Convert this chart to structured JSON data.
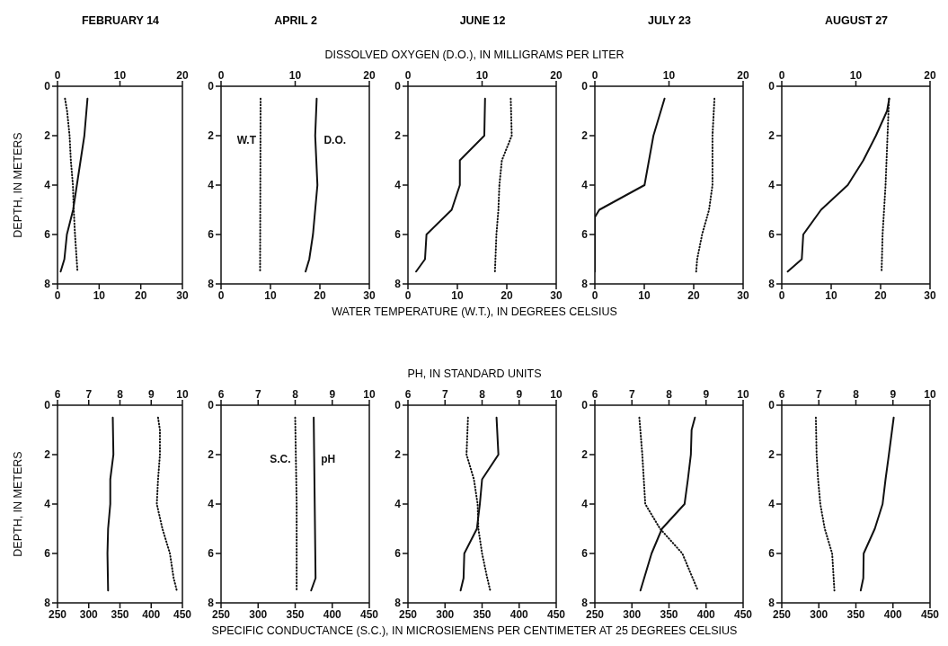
{
  "chart_data": [
    {
      "type": "line",
      "title": "FEBRUARY 14",
      "ylabel": "DEPTH, IN METERS",
      "ylim": [
        8,
        0
      ],
      "yticks": [
        0,
        2,
        4,
        6,
        8
      ],
      "xlim": [
        0,
        30
      ],
      "xticks": [
        0,
        10,
        20,
        30
      ],
      "x2lim": [
        0,
        20
      ],
      "x2ticks": [
        0,
        10,
        20
      ],
      "marker": "none",
      "series": [
        {
          "axis": "x2",
          "line_style": "solid",
          "color": "#111111",
          "x": [
            4.8,
            4.3,
            3.7,
            2.5,
            1.5,
            1.1,
            0.5
          ],
          "values": [
            0.5,
            2,
            3,
            5,
            6,
            7,
            7.5
          ]
        },
        {
          "line_style": "dotted",
          "color": "#111111",
          "x": [
            1.8,
            2.3,
            2.9,
            3.2,
            3.7,
            3.9,
            4.2,
            4.6,
            4.8
          ],
          "values": [
            0.5,
            1,
            2,
            3,
            4,
            5,
            6,
            7,
            7.5
          ]
        }
      ]
    },
    {
      "type": "line",
      "title": "APRIL 2",
      "ylim": [
        8,
        0
      ],
      "yticks": [
        0,
        2,
        4,
        6,
        8
      ],
      "xlim": [
        0,
        30
      ],
      "xticks": [
        0,
        10,
        20,
        30
      ],
      "x2lim": [
        0,
        20
      ],
      "x2ticks": [
        0,
        10,
        20
      ],
      "marker": "none",
      "series": [
        {
          "name": "D.O.",
          "axis": "x2",
          "line_style": "solid",
          "color": "#111111",
          "x": [
            12.9,
            12.7,
            13.0,
            12.4,
            11.9,
            11.4
          ],
          "values": [
            0.5,
            2,
            4,
            6,
            7,
            7.5
          ]
        },
        {
          "name": "W.T",
          "line_style": "dotted",
          "color": "#111111",
          "x": [
            8.0,
            7.9
          ],
          "values": [
            0.5,
            7.5
          ]
        }
      ]
    },
    {
      "type": "line",
      "title": "JUNE 12",
      "x2label": "DISSOLVED OXYGEN (D.O.), IN MILLIGRAMS PER LITER",
      "xlabel": "WATER TEMPERATURE (W.T.), IN DEGREES CELSIUS",
      "ylim": [
        8,
        0
      ],
      "yticks": [
        0,
        2,
        4,
        6,
        8
      ],
      "xlim": [
        0,
        30
      ],
      "xticks": [
        0,
        10,
        20,
        30
      ],
      "x2lim": [
        0,
        20
      ],
      "x2ticks": [
        0,
        10,
        20
      ],
      "marker": "none",
      "series": [
        {
          "axis": "x2",
          "line_style": "solid",
          "color": "#111111",
          "x": [
            10.4,
            10.3,
            7.0,
            7.0,
            5.9,
            2.5,
            2.3,
            1.1
          ],
          "values": [
            0.5,
            2,
            3,
            4,
            5,
            6,
            7,
            7.5
          ]
        },
        {
          "line_style": "dotted",
          "color": "#111111",
          "x": [
            20.8,
            21.0,
            19.0,
            18.5,
            18.3,
            17.9,
            17.7,
            17.6
          ],
          "values": [
            0.5,
            2,
            3,
            4,
            5,
            6,
            7,
            7.5
          ]
        }
      ]
    },
    {
      "type": "line",
      "title": "JULY 23",
      "ylim": [
        8,
        0
      ],
      "yticks": [
        0,
        2,
        4,
        6,
        8
      ],
      "xlim": [
        0,
        30
      ],
      "xticks": [
        0,
        10,
        20,
        30
      ],
      "x2lim": [
        0,
        20
      ],
      "x2ticks": [
        0,
        10,
        20
      ],
      "marker": "none",
      "series": [
        {
          "axis": "x2",
          "line_style": "solid",
          "color": "#111111",
          "x": [
            9.4,
            7.9,
            6.7,
            0.6,
            0,
            0
          ],
          "values": [
            0.5,
            2,
            4,
            5,
            5.3,
            7.5
          ]
        },
        {
          "line_style": "dotted",
          "color": "#111111",
          "x": [
            24.2,
            23.8,
            23.8,
            23.1,
            21.7,
            20.7,
            20.5
          ],
          "values": [
            0.5,
            2,
            4,
            5,
            6,
            7,
            7.5
          ]
        }
      ]
    },
    {
      "type": "line",
      "title": "AUGUST 27",
      "ylim": [
        8,
        0
      ],
      "yticks": [
        0,
        2,
        4,
        6,
        8
      ],
      "xlim": [
        0,
        30
      ],
      "xticks": [
        0,
        10,
        20,
        30
      ],
      "x2lim": [
        0,
        20
      ],
      "x2ticks": [
        0,
        10,
        20
      ],
      "marker": "none",
      "series": [
        {
          "axis": "x2",
          "line_style": "solid",
          "color": "#111111",
          "x": [
            14.5,
            14.2,
            12.7,
            11.0,
            8.9,
            5.3,
            2.9,
            2.7,
            0.8
          ],
          "values": [
            0.5,
            1,
            2,
            3,
            4,
            5,
            6,
            7,
            7.5
          ]
        },
        {
          "line_style": "dotted",
          "color": "#111111",
          "x": [
            21.7,
            21.0,
            20.4,
            20.2
          ],
          "values": [
            0.5,
            4,
            6,
            7.5
          ]
        }
      ]
    },
    {
      "type": "line",
      "ylabel": "DEPTH, IN METERS",
      "ylim": [
        8,
        0
      ],
      "yticks": [
        0,
        2,
        4,
        6,
        8
      ],
      "xlim": [
        250,
        450
      ],
      "xticks": [
        250,
        300,
        350,
        400,
        450
      ],
      "x2lim": [
        6,
        10
      ],
      "x2ticks": [
        6,
        7,
        8,
        9,
        10
      ],
      "marker": "none",
      "series": [
        {
          "axis": "x2",
          "line_style": "solid",
          "color": "#111111",
          "x": [
            7.77,
            7.79,
            7.69,
            7.69,
            7.62,
            7.6,
            7.62
          ],
          "values": [
            0.5,
            2,
            3,
            4,
            5,
            6,
            7.5
          ]
        },
        {
          "line_style": "dotted",
          "color": "#111111",
          "x": [
            411,
            414,
            414,
            411,
            409,
            418,
            430,
            436,
            441
          ],
          "values": [
            0.5,
            1,
            2,
            3,
            4,
            5,
            6,
            7,
            7.5
          ]
        }
      ]
    },
    {
      "type": "line",
      "ylim": [
        8,
        0
      ],
      "yticks": [
        0,
        2,
        4,
        6,
        8
      ],
      "xlim": [
        250,
        450
      ],
      "xticks": [
        250,
        300,
        350,
        400,
        450
      ],
      "x2lim": [
        6,
        10
      ],
      "x2ticks": [
        6,
        7,
        8,
        9,
        10
      ],
      "marker": "none",
      "series": [
        {
          "name": "pH",
          "axis": "x2",
          "line_style": "solid",
          "color": "#111111",
          "x": [
            8.5,
            8.55,
            8.43
          ],
          "values": [
            0.5,
            7,
            7.5
          ]
        },
        {
          "name": "S.C.",
          "line_style": "dotted",
          "color": "#111111",
          "x": [
            350,
            352,
            352
          ],
          "values": [
            0.5,
            4,
            7.5
          ]
        }
      ]
    },
    {
      "type": "line",
      "x2label": "PH, IN STANDARD UNITS",
      "xlabel": "SPECIFIC CONDUCTANCE (S.C.), IN MICROSIEMENS PER CENTIMETER AT 25 DEGREES CELSIUS",
      "ylim": [
        8,
        0
      ],
      "yticks": [
        0,
        2,
        4,
        6,
        8
      ],
      "xlim": [
        250,
        450
      ],
      "xticks": [
        250,
        300,
        350,
        400,
        450
      ],
      "x2lim": [
        6,
        10
      ],
      "x2ticks": [
        6,
        7,
        8,
        9,
        10
      ],
      "marker": "none",
      "series": [
        {
          "axis": "x2",
          "line_style": "solid",
          "color": "#111111",
          "x": [
            8.39,
            8.44,
            8.0,
            7.94,
            7.86,
            7.52,
            7.5,
            7.42
          ],
          "values": [
            0.5,
            2,
            3,
            4,
            5,
            6,
            7,
            7.5
          ]
        },
        {
          "line_style": "dotted",
          "color": "#111111",
          "x": [
            331,
            329,
            339,
            344,
            345,
            350,
            357,
            361
          ],
          "values": [
            0.5,
            2,
            3,
            4,
            5,
            6,
            7,
            7.5
          ]
        }
      ]
    },
    {
      "type": "line",
      "ylim": [
        8,
        0
      ],
      "yticks": [
        0,
        2,
        4,
        6,
        8
      ],
      "xlim": [
        250,
        450
      ],
      "xticks": [
        250,
        300,
        350,
        400,
        450
      ],
      "x2lim": [
        6,
        10
      ],
      "x2ticks": [
        6,
        7,
        8,
        9,
        10
      ],
      "marker": "none",
      "series": [
        {
          "axis": "x2",
          "line_style": "solid",
          "color": "#111111",
          "x": [
            8.7,
            8.61,
            8.59,
            8.51,
            8.42,
            7.81,
            7.53,
            7.23
          ],
          "values": [
            0.5,
            1,
            2,
            3,
            4,
            5,
            6,
            7.5
          ]
        },
        {
          "line_style": "dotted",
          "color": "#111111",
          "x": [
            310,
            314,
            318,
            338,
            368,
            382,
            389
          ],
          "values": [
            0.5,
            2,
            4,
            5,
            6,
            7,
            7.5
          ]
        }
      ]
    },
    {
      "type": "line",
      "ylim": [
        8,
        0
      ],
      "yticks": [
        0,
        2,
        4,
        6,
        8
      ],
      "xlim": [
        250,
        450
      ],
      "xticks": [
        250,
        300,
        350,
        400,
        450
      ],
      "x2lim": [
        6,
        10
      ],
      "x2ticks": [
        6,
        7,
        8,
        9,
        10
      ],
      "marker": "none",
      "series": [
        {
          "axis": "x2",
          "line_style": "solid",
          "color": "#111111",
          "x": [
            9.02,
            8.89,
            8.8,
            8.72,
            8.51,
            8.21,
            8.2,
            8.13
          ],
          "values": [
            0.5,
            2,
            3,
            4,
            5,
            6,
            7,
            7.5
          ]
        },
        {
          "line_style": "dotted",
          "color": "#111111",
          "x": [
            296,
            297,
            299,
            302,
            308,
            318,
            321
          ],
          "values": [
            0.5,
            2,
            3,
            4,
            5,
            6,
            7.5
          ]
        }
      ]
    }
  ]
}
